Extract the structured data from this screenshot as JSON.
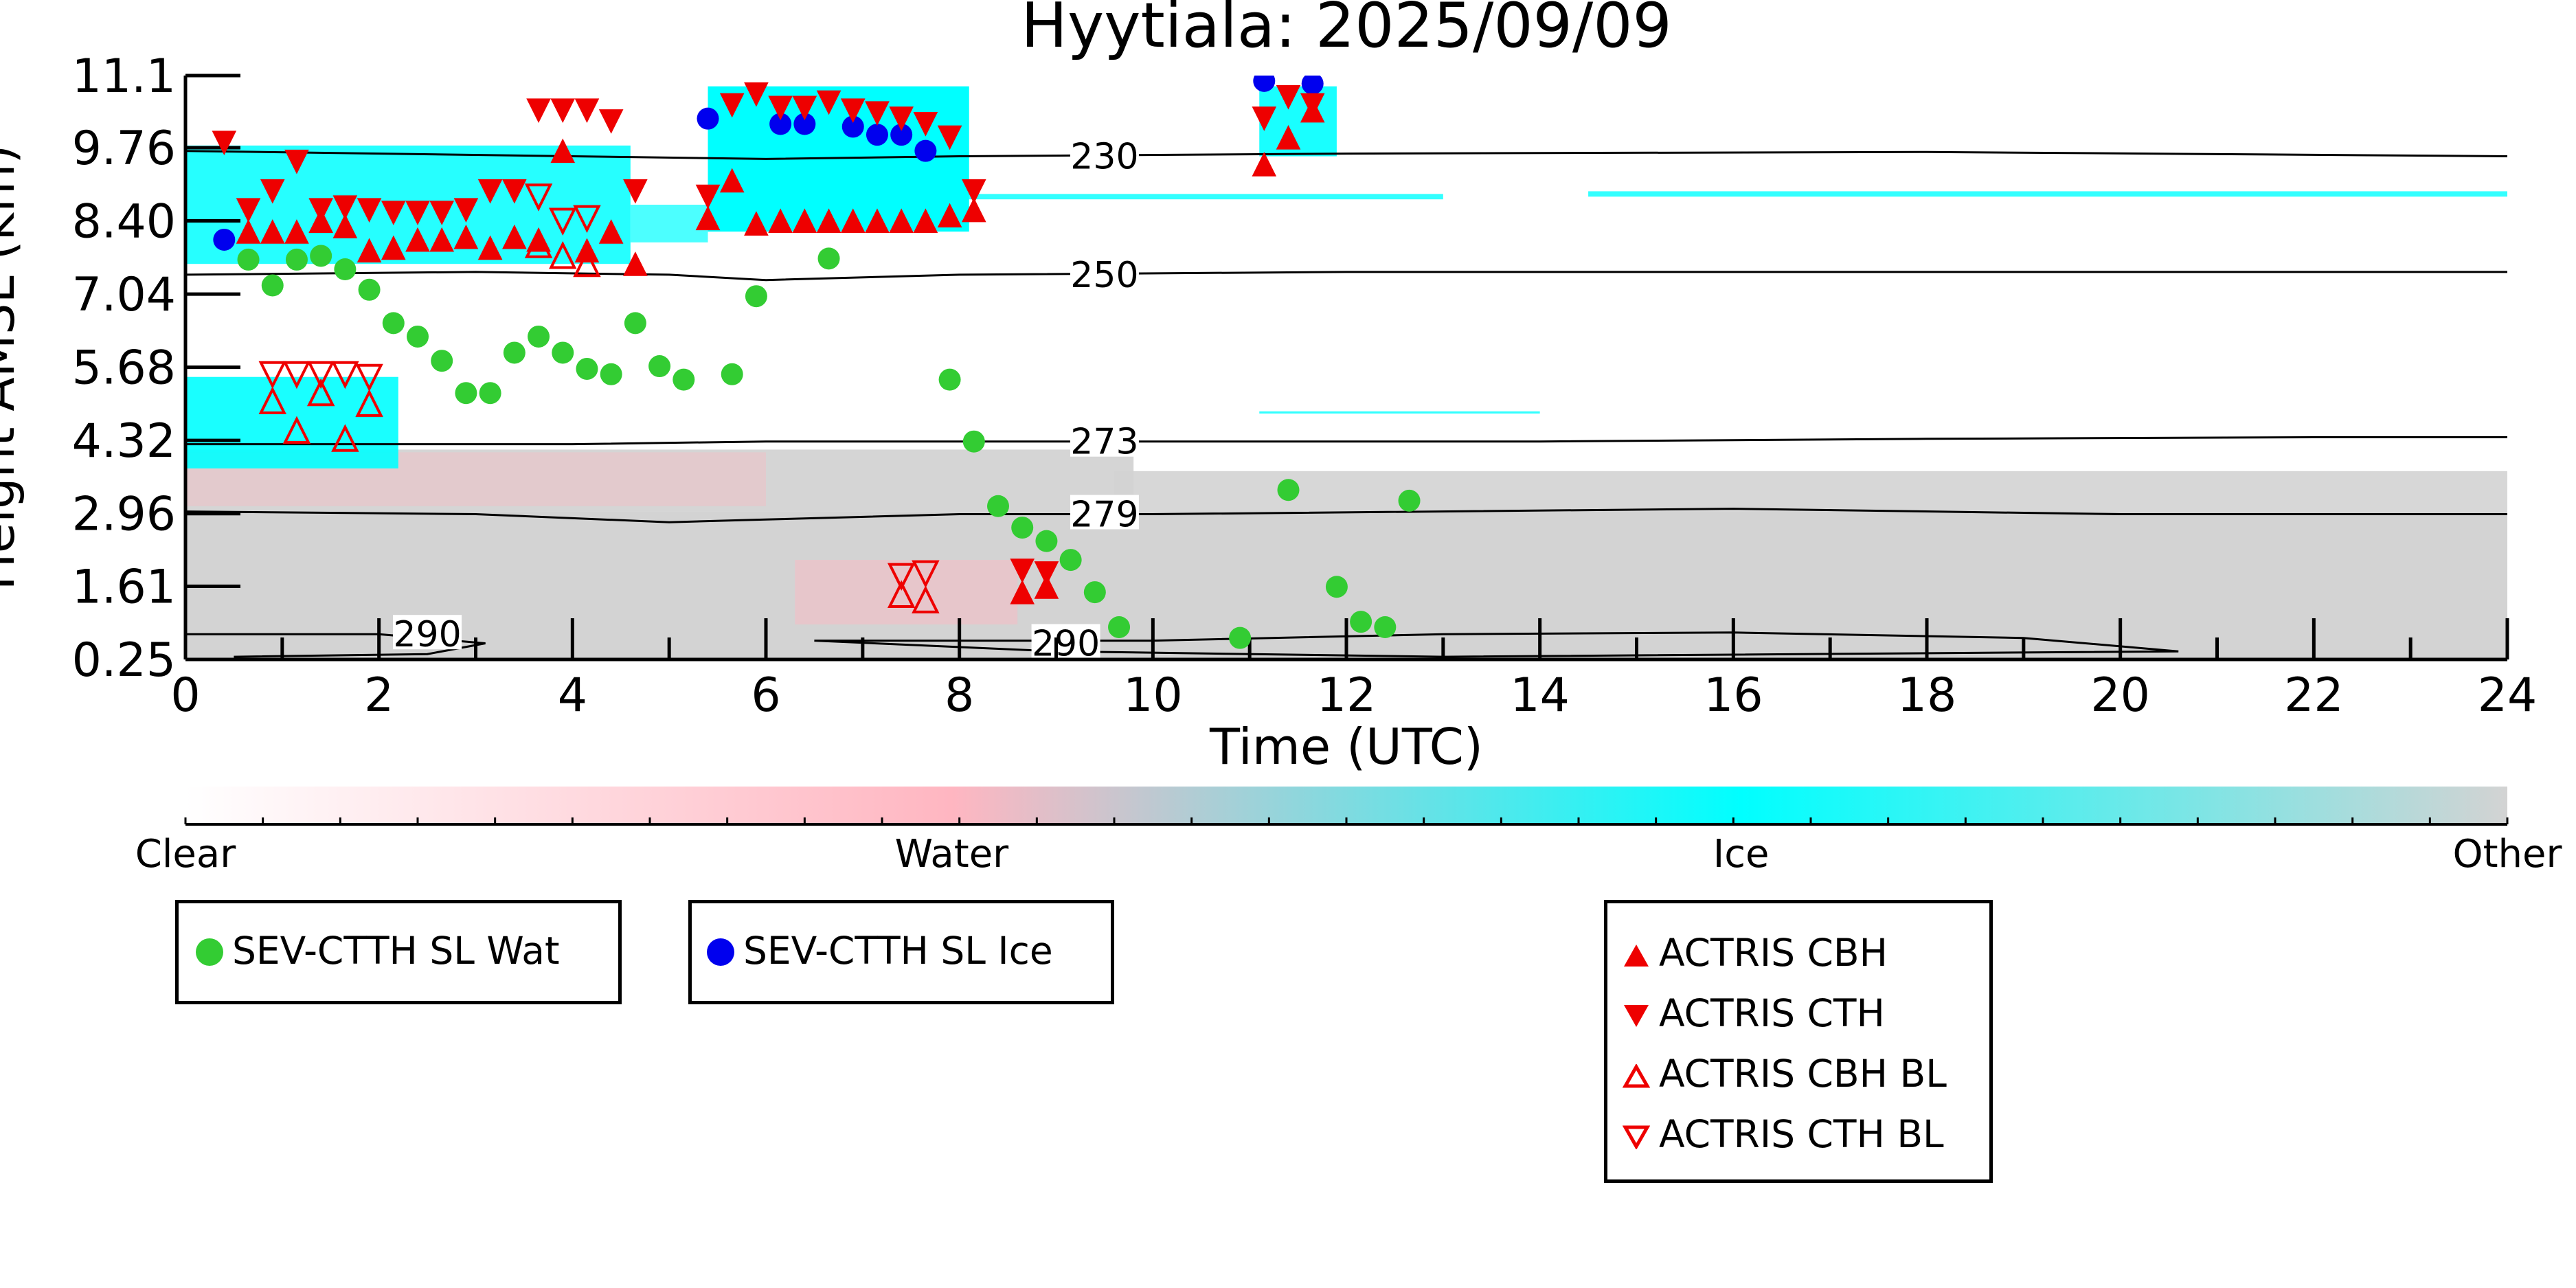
{
  "chart_data": {
    "type": "scatter",
    "title": "Hyytiala: 2025/09/09",
    "xlabel": "Time (UTC)",
    "ylabel": "Height AMSL (km)",
    "xlim": [
      0,
      24
    ],
    "ylim": [
      0.25,
      11.1
    ],
    "x_ticks": [
      "0",
      "2",
      "4",
      "6",
      "8",
      "10",
      "12",
      "14",
      "16",
      "18",
      "20",
      "22",
      "24"
    ],
    "y_ticks": [
      "0.25",
      "1.61",
      "2.96",
      "4.32",
      "5.68",
      "7.04",
      "8.40",
      "9.76",
      "11.1"
    ],
    "colorbar": {
      "labels": [
        "Clear",
        "Water",
        "Ice",
        "Other"
      ],
      "colors": [
        "#ffffff",
        "#ffb6c1",
        "#00ffff",
        "#d3d3d3"
      ]
    },
    "contours": [
      {
        "label": "230",
        "points": [
          [
            0,
            9.7
          ],
          [
            4,
            9.6
          ],
          [
            6,
            9.55
          ],
          [
            8,
            9.6
          ],
          [
            12,
            9.65
          ],
          [
            18,
            9.68
          ],
          [
            24,
            9.6
          ]
        ]
      },
      {
        "label": "250",
        "points": [
          [
            0,
            7.4
          ],
          [
            3,
            7.45
          ],
          [
            5,
            7.4
          ],
          [
            6,
            7.3
          ],
          [
            8,
            7.4
          ],
          [
            12,
            7.45
          ],
          [
            18,
            7.45
          ],
          [
            24,
            7.45
          ]
        ]
      },
      {
        "label": "273",
        "points": [
          [
            0,
            4.25
          ],
          [
            4,
            4.25
          ],
          [
            6,
            4.3
          ],
          [
            9,
            4.3
          ],
          [
            14,
            4.3
          ],
          [
            18,
            4.35
          ],
          [
            22,
            4.38
          ],
          [
            24,
            4.38
          ]
        ]
      },
      {
        "label": "279",
        "points": [
          [
            0,
            3.0
          ],
          [
            3,
            2.95
          ],
          [
            5,
            2.8
          ],
          [
            6,
            2.85
          ],
          [
            8,
            2.95
          ],
          [
            10,
            2.95
          ],
          [
            16,
            3.05
          ],
          [
            20,
            2.95
          ],
          [
            24,
            2.95
          ]
        ]
      },
      {
        "label": "290",
        "points": [
          [
            0,
            0.72
          ],
          [
            2,
            0.72
          ],
          [
            3.1,
            0.55
          ],
          [
            2.5,
            0.35
          ],
          [
            0.5,
            0.3
          ]
        ]
      },
      {
        "label": "290",
        "points": [
          [
            6.5,
            0.6
          ],
          [
            10,
            0.6
          ],
          [
            13,
            0.72
          ],
          [
            16,
            0.75
          ],
          [
            19,
            0.65
          ],
          [
            20.6,
            0.4
          ],
          [
            13,
            0.3
          ],
          [
            9,
            0.4
          ],
          [
            6.5,
            0.6
          ]
        ]
      }
    ],
    "series": [
      {
        "name": "SEV-CTTH SL Wat",
        "color": "#33cc33",
        "marker": "circle",
        "points": [
          [
            0.65,
            7.68
          ],
          [
            0.9,
            7.2
          ],
          [
            1.15,
            7.68
          ],
          [
            1.4,
            7.75
          ],
          [
            1.65,
            7.5
          ],
          [
            1.9,
            7.12
          ],
          [
            2.15,
            6.5
          ],
          [
            2.4,
            6.25
          ],
          [
            2.65,
            5.8
          ],
          [
            2.9,
            5.2
          ],
          [
            3.15,
            5.2
          ],
          [
            3.4,
            5.95
          ],
          [
            3.65,
            6.25
          ],
          [
            3.9,
            5.95
          ],
          [
            4.15,
            5.65
          ],
          [
            4.4,
            5.55
          ],
          [
            4.65,
            6.5
          ],
          [
            4.9,
            5.7
          ],
          [
            5.15,
            5.45
          ],
          [
            5.65,
            5.55
          ],
          [
            5.9,
            7.0
          ],
          [
            6.65,
            7.7
          ],
          [
            7.9,
            5.45
          ],
          [
            8.15,
            4.3
          ],
          [
            8.4,
            3.1
          ],
          [
            8.65,
            2.7
          ],
          [
            8.9,
            2.45
          ],
          [
            9.15,
            2.1
          ],
          [
            9.4,
            1.5
          ],
          [
            9.65,
            0.85
          ],
          [
            10.9,
            0.65
          ],
          [
            11.4,
            3.4
          ],
          [
            11.9,
            1.6
          ],
          [
            12.15,
            0.95
          ],
          [
            12.4,
            0.85
          ],
          [
            12.65,
            3.2
          ]
        ]
      },
      {
        "name": "SEV-CTTH SL Ice",
        "color": "#0000ee",
        "marker": "circle",
        "points": [
          [
            0.4,
            8.05
          ],
          [
            5.4,
            10.3
          ],
          [
            6.15,
            10.2
          ],
          [
            6.4,
            10.2
          ],
          [
            6.9,
            10.15
          ],
          [
            7.15,
            10.0
          ],
          [
            7.4,
            10.0
          ],
          [
            7.65,
            9.7
          ],
          [
            11.15,
            11.0
          ],
          [
            11.65,
            10.95
          ]
        ]
      },
      {
        "name": "ACTRIS CBH",
        "color": "#ee0000",
        "marker": "triangle-up",
        "points": [
          [
            0.65,
            8.2
          ],
          [
            0.9,
            8.2
          ],
          [
            1.15,
            8.2
          ],
          [
            1.4,
            8.4
          ],
          [
            1.65,
            8.3
          ],
          [
            1.9,
            7.85
          ],
          [
            2.15,
            7.9
          ],
          [
            2.4,
            8.05
          ],
          [
            2.65,
            8.05
          ],
          [
            2.9,
            8.1
          ],
          [
            3.15,
            7.9
          ],
          [
            3.4,
            8.1
          ],
          [
            3.65,
            8.05
          ],
          [
            3.9,
            9.7
          ],
          [
            4.15,
            7.85
          ],
          [
            4.4,
            8.2
          ],
          [
            4.65,
            7.6
          ],
          [
            5.4,
            8.45
          ],
          [
            5.65,
            9.15
          ],
          [
            5.9,
            8.35
          ],
          [
            6.15,
            8.4
          ],
          [
            6.4,
            8.4
          ],
          [
            6.65,
            8.4
          ],
          [
            6.9,
            8.4
          ],
          [
            7.15,
            8.4
          ],
          [
            7.4,
            8.4
          ],
          [
            7.65,
            8.4
          ],
          [
            7.9,
            8.5
          ],
          [
            8.15,
            8.6
          ],
          [
            8.65,
            1.5
          ],
          [
            8.9,
            1.6
          ],
          [
            11.15,
            9.45
          ],
          [
            11.4,
            9.95
          ],
          [
            11.65,
            10.45
          ]
        ]
      },
      {
        "name": "ACTRIS CTH",
        "color": "#ee0000",
        "marker": "triangle-down",
        "points": [
          [
            0.4,
            9.85
          ],
          [
            0.65,
            8.6
          ],
          [
            0.9,
            8.95
          ],
          [
            1.15,
            9.5
          ],
          [
            1.4,
            8.6
          ],
          [
            1.65,
            8.65
          ],
          [
            1.9,
            8.6
          ],
          [
            2.15,
            8.55
          ],
          [
            2.4,
            8.55
          ],
          [
            2.65,
            8.55
          ],
          [
            2.9,
            8.6
          ],
          [
            3.15,
            8.95
          ],
          [
            3.4,
            8.95
          ],
          [
            3.65,
            10.45
          ],
          [
            3.9,
            10.45
          ],
          [
            4.15,
            10.45
          ],
          [
            4.4,
            10.25
          ],
          [
            4.65,
            8.95
          ],
          [
            5.4,
            8.85
          ],
          [
            5.65,
            10.55
          ],
          [
            5.9,
            10.75
          ],
          [
            6.15,
            10.5
          ],
          [
            6.4,
            10.5
          ],
          [
            6.65,
            10.6
          ],
          [
            6.9,
            10.45
          ],
          [
            7.15,
            10.4
          ],
          [
            7.4,
            10.3
          ],
          [
            7.65,
            10.2
          ],
          [
            7.9,
            9.95
          ],
          [
            8.15,
            8.95
          ],
          [
            8.65,
            1.9
          ],
          [
            8.9,
            1.85
          ],
          [
            11.15,
            10.3
          ],
          [
            11.4,
            10.7
          ],
          [
            11.65,
            10.55
          ]
        ]
      },
      {
        "name": "ACTRIS CBH BL",
        "color": "#ee0000",
        "marker": "triangle-up-open",
        "points": [
          [
            0.9,
            5.05
          ],
          [
            1.15,
            4.5
          ],
          [
            1.4,
            5.2
          ],
          [
            1.65,
            4.35
          ],
          [
            1.9,
            5.0
          ],
          [
            3.65,
            7.95
          ],
          [
            3.9,
            7.75
          ],
          [
            4.15,
            7.6
          ],
          [
            7.4,
            1.45
          ],
          [
            7.65,
            1.35
          ]
        ]
      },
      {
        "name": "ACTRIS CTH BL",
        "color": "#ee0000",
        "marker": "triangle-down-open",
        "points": [
          [
            0.9,
            5.55
          ],
          [
            1.15,
            5.55
          ],
          [
            1.4,
            5.55
          ],
          [
            1.65,
            5.55
          ],
          [
            1.9,
            5.5
          ],
          [
            3.65,
            8.85
          ],
          [
            3.9,
            8.4
          ],
          [
            4.15,
            8.45
          ],
          [
            7.4,
            1.8
          ],
          [
            7.65,
            1.85
          ]
        ]
      }
    ],
    "legend": [
      {
        "label": "SEV-CTTH SL Wat",
        "color": "#33cc33",
        "marker": "circle"
      },
      {
        "label": "SEV-CTTH SL Ice",
        "color": "#0000ee",
        "marker": "circle"
      },
      {
        "label": "ACTRIS CBH",
        "color": "#ee0000",
        "marker": "triangle-up"
      },
      {
        "label": "ACTRIS CTH",
        "color": "#ee0000",
        "marker": "triangle-down"
      },
      {
        "label": "ACTRIS CBH BL",
        "color": "#ee0000",
        "marker": "triangle-up-open"
      },
      {
        "label": "ACTRIS CTH BL",
        "color": "#ee0000",
        "marker": "triangle-down-open"
      }
    ],
    "legend_placement": "below-plot"
  }
}
